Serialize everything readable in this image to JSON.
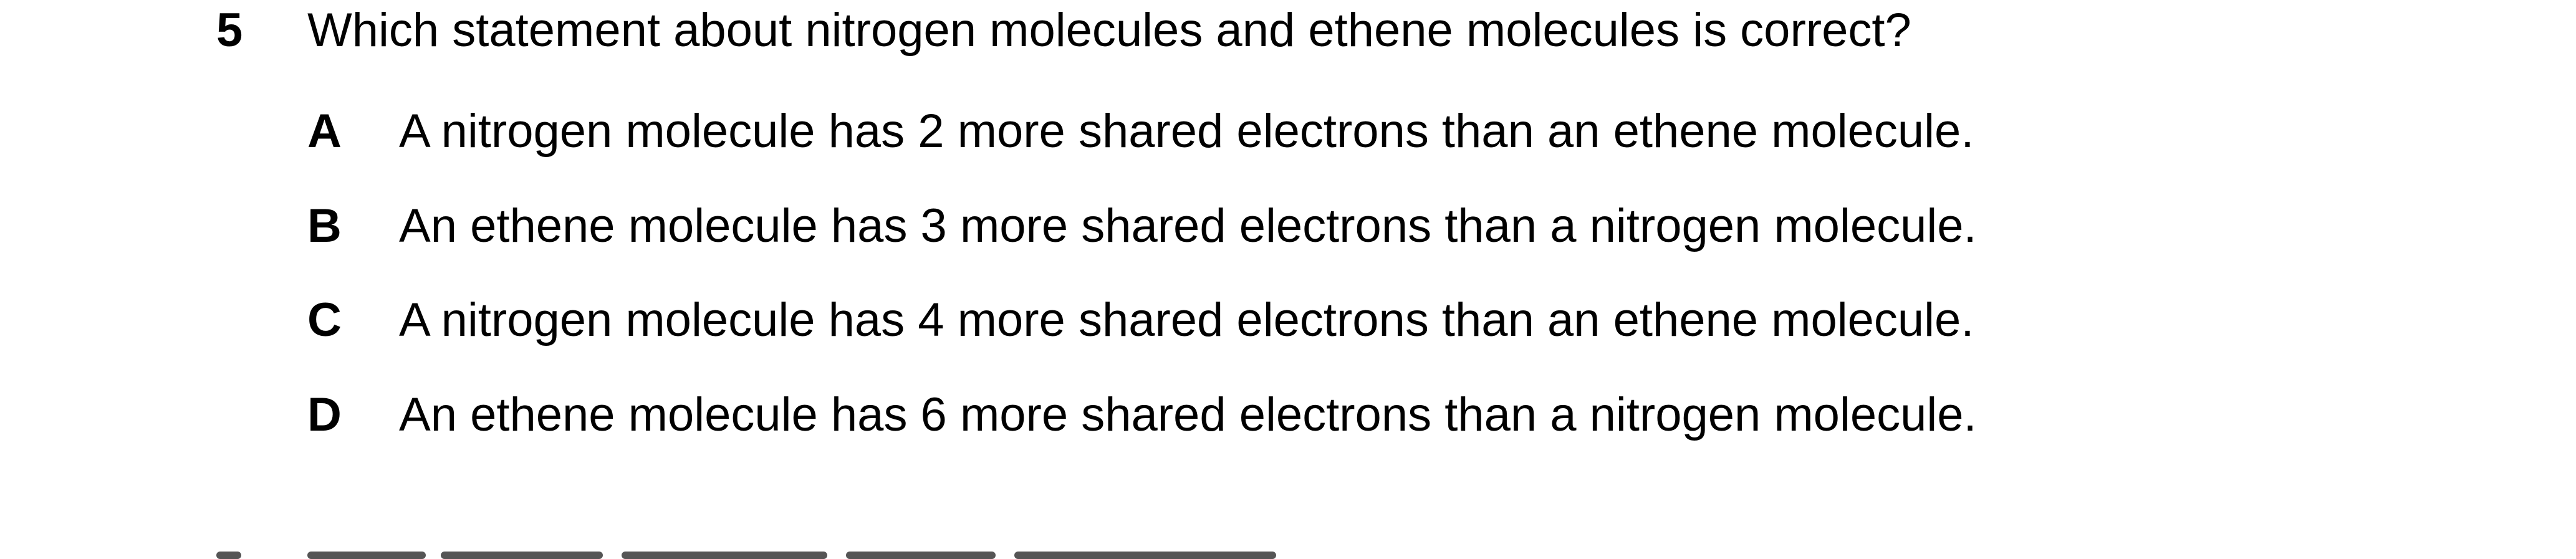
{
  "question": {
    "number": "5",
    "stem": "Which statement about nitrogen molecules and ethene molecules is correct?",
    "options": [
      {
        "letter": "A",
        "text": "A nitrogen molecule has 2 more shared electrons than an ethene molecule."
      },
      {
        "letter": "B",
        "text": "An ethene molecule has 3 more shared electrons than a nitrogen molecule."
      },
      {
        "letter": "C",
        "text": "A nitrogen molecule has 4 more shared electrons than an ethene molecule."
      },
      {
        "letter": "D",
        "text": "An ethene molecule has 6 more shared electrons than a nitrogen molecule."
      }
    ]
  }
}
